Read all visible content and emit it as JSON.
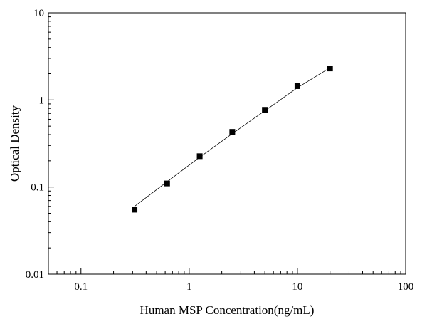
{
  "chart_data": {
    "type": "scatter",
    "title": "",
    "xlabel": "Human MSP Concentration(ng/mL)",
    "ylabel": "Optical Density",
    "x_scale": "log",
    "y_scale": "log",
    "xlim": [
      0.05,
      100
    ],
    "ylim": [
      0.01,
      10
    ],
    "x_ticks": [
      {
        "value": 0.1,
        "label": "0.1"
      },
      {
        "value": 1,
        "label": "1"
      },
      {
        "value": 10,
        "label": "10"
      },
      {
        "value": 100,
        "label": "100"
      }
    ],
    "y_ticks": [
      {
        "value": 0.01,
        "label": "0.01"
      },
      {
        "value": 0.1,
        "label": "0.1"
      },
      {
        "value": 1,
        "label": "1"
      },
      {
        "value": 10,
        "label": "10"
      }
    ],
    "grid": false,
    "legend": "none",
    "series": [
      {
        "marker": "square",
        "color": "#000000",
        "points": [
          {
            "x": 0.3125,
            "y": 0.055
          },
          {
            "x": 0.625,
            "y": 0.11
          },
          {
            "x": 1.25,
            "y": 0.226
          },
          {
            "x": 2.5,
            "y": 0.43
          },
          {
            "x": 5,
            "y": 0.77
          },
          {
            "x": 10,
            "y": 1.44
          },
          {
            "x": 20,
            "y": 2.3
          }
        ]
      }
    ],
    "fit_line": {
      "color": "#000000",
      "points": [
        {
          "x": 0.3125,
          "y": 0.06
        },
        {
          "x": 0.625,
          "y": 0.115
        },
        {
          "x": 1.25,
          "y": 0.22
        },
        {
          "x": 2.5,
          "y": 0.41
        },
        {
          "x": 5,
          "y": 0.75
        },
        {
          "x": 10,
          "y": 1.38
        },
        {
          "x": 20,
          "y": 2.34
        }
      ]
    }
  }
}
